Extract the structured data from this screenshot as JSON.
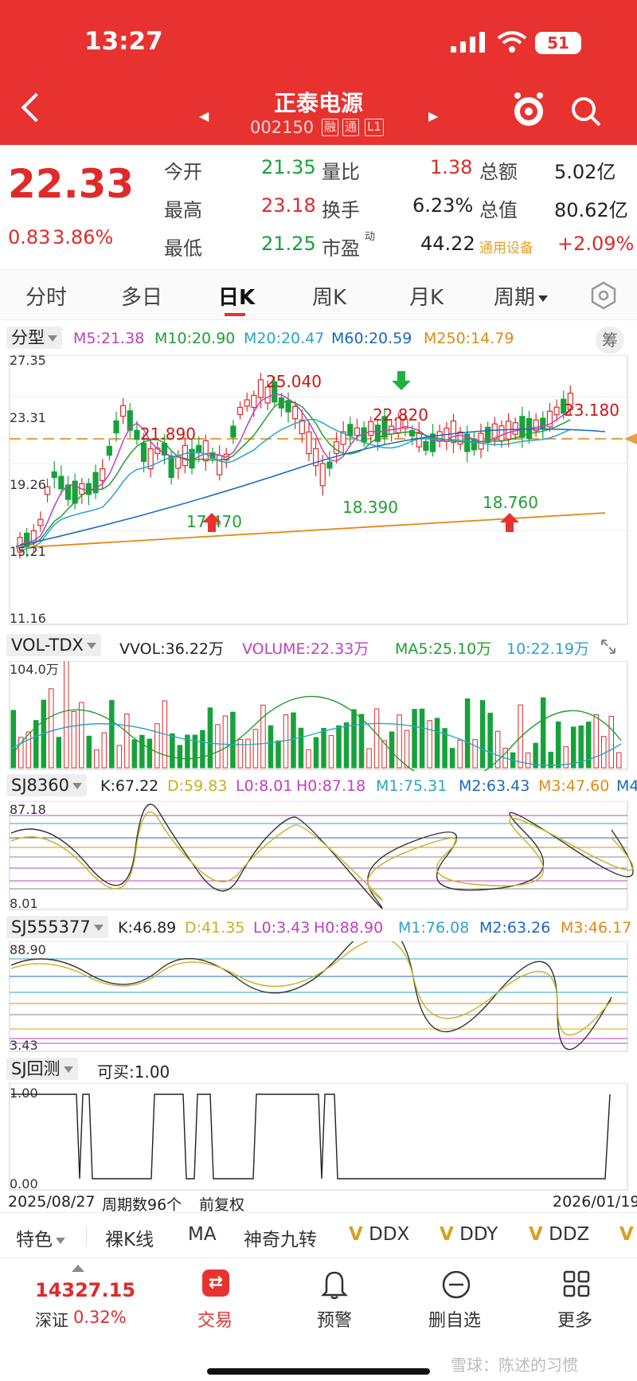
{
  "status": {
    "time": "13:27",
    "battery": "51"
  },
  "header": {
    "title": "正泰电源",
    "code": "002150",
    "tags": [
      "融",
      "通",
      "L1"
    ]
  },
  "quote": {
    "price": "22.33",
    "change": "0.83",
    "change_pct": "3.86%",
    "rows": [
      {
        "l1": "今开",
        "v1": "21.35",
        "l2": "量比",
        "v2": "1.38",
        "l3": "总额",
        "v3": "5.02亿"
      },
      {
        "l1": "最高",
        "v1": "23.18",
        "l2": "换手",
        "v2": "6.23%",
        "l3": "总值",
        "v3": "80.62亿"
      },
      {
        "l1": "最低",
        "v1": "21.25",
        "l2": "市盈",
        "l2sup": "动",
        "v2": "44.22",
        "l3": "通用设备",
        "v3": "+2.09%"
      }
    ]
  },
  "tabs": [
    "分时",
    "多日",
    "日K",
    "周K",
    "月K",
    "周期"
  ],
  "main_chart": {
    "selector": "分型",
    "ma": [
      {
        "text": "M5:21.38",
        "color": "#c040c0"
      },
      {
        "text": "M10:20.90",
        "color": "#20a030"
      },
      {
        "text": "M20:20.47",
        "color": "#2aa4c8"
      },
      {
        "text": "M60:20.59",
        "color": "#1868c0"
      },
      {
        "text": "M250:14.79",
        "color": "#e08a10"
      }
    ],
    "chip_btn": "筹",
    "y_labels": [
      "27.35",
      "23.31",
      "19.26",
      "15.21",
      "11.16"
    ],
    "annotations": [
      {
        "text": "25.040",
        "color": "#c81818"
      },
      {
        "text": "21.890",
        "color": "#c81818"
      },
      {
        "text": "22.820",
        "color": "#c81818"
      },
      {
        "text": "23.180",
        "color": "#c81818"
      },
      {
        "text": "17.470",
        "color": "#20a030"
      },
      {
        "text": "18.390",
        "color": "#20a030"
      },
      {
        "text": "18.760",
        "color": "#20a030"
      }
    ]
  },
  "vol_chart": {
    "selector": "VOL-TDX",
    "items": [
      {
        "text": "VVOL:36.22万",
        "color": "#222"
      },
      {
        "text": "VOLUME:22.33万",
        "color": "#c040c0"
      },
      {
        "text": "MA5:25.10万",
        "color": "#20a030"
      },
      {
        "text": "10:22.19万",
        "color": "#2aa4c8"
      }
    ],
    "y_label": "104.0万"
  },
  "sj8360": {
    "selector": "SJ8360",
    "items": [
      {
        "text": "K:67.22",
        "color": "#222"
      },
      {
        "text": "D:59.83",
        "color": "#c8b020"
      },
      {
        "text": "L0:8.01",
        "color": "#c040c0"
      },
      {
        "text": "H0:87.18",
        "color": "#c040c0"
      },
      {
        "text": "M1:75.31",
        "color": "#2aa4c8"
      },
      {
        "text": "M2:63.43",
        "color": "#1868c0"
      },
      {
        "text": "M3:47.60",
        "color": "#e08a10"
      },
      {
        "text": "M4",
        "color": "#1868c0"
      }
    ],
    "y_top": "87.18",
    "y_bottom": "8.01"
  },
  "sj555377": {
    "selector": "SJ555377",
    "items": [
      {
        "text": "K:46.89",
        "color": "#222"
      },
      {
        "text": "D:41.35",
        "color": "#c8b020"
      },
      {
        "text": "L0:3.43",
        "color": "#c040c0"
      },
      {
        "text": "H0:88.90",
        "color": "#c040c0"
      },
      {
        "text": "M1:76.08",
        "color": "#2aa4c8"
      },
      {
        "text": "M2:63.26",
        "color": "#1868c0"
      },
      {
        "text": "M3:46.17",
        "color": "#e08a10"
      }
    ],
    "y_top": "88.90",
    "y_bottom": "3.43"
  },
  "backtest": {
    "selector": "SJ回测",
    "value": "可买:1.00",
    "y_top": "1.00",
    "y_bottom": "0.00",
    "start_date": "2025/08/27",
    "period_count": "周期数96个",
    "adjust": "前复权",
    "end_date": "2026/01/19"
  },
  "bottom_tools": [
    "特色",
    "裸K线",
    "MA",
    "神奇九转",
    "DDX",
    "DDY",
    "DDZ"
  ],
  "vip_mark": "V",
  "nav": {
    "index_value": "14327.15",
    "index_name": "深证",
    "index_pct": "0.32%",
    "items": [
      "交易",
      "预警",
      "删自选",
      "更多"
    ]
  },
  "watermark": "雪球：陈述的习惯"
}
